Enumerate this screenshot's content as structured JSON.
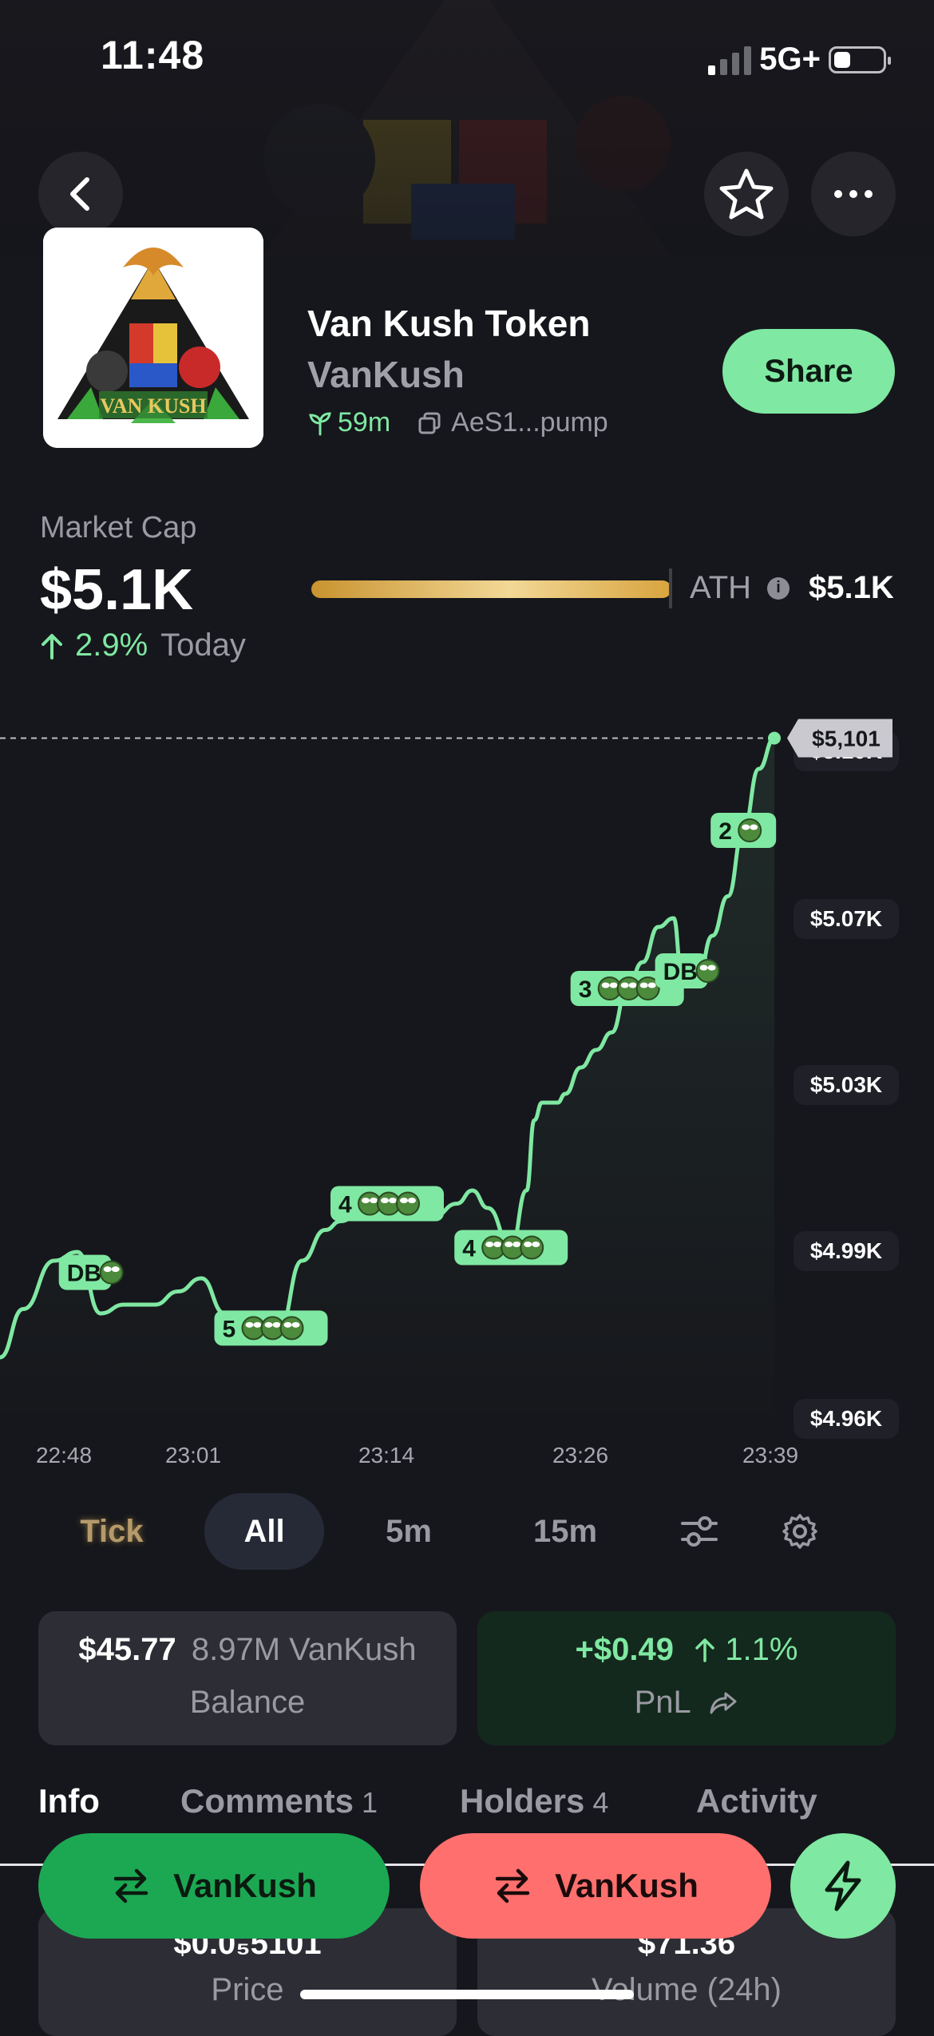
{
  "status_bar": {
    "time": "11:48",
    "network": "5G+",
    "battery_level": 0.35
  },
  "token": {
    "name": "Van Kush Token",
    "ticker": "VanKush",
    "logo_text": "VAN KUSH",
    "age": "59m",
    "address": "AeS1...pump"
  },
  "header": {
    "share_label": "Share"
  },
  "market_cap": {
    "label": "Market Cap",
    "value": "$5.1K",
    "change": "2.9%",
    "change_suffix": "Today",
    "ath_label": "ATH",
    "ath_value": "$5.1K",
    "ath_progress": 0.99
  },
  "chart_data": {
    "type": "line",
    "x_ticks": [
      "22:48",
      "23:01",
      "23:14",
      "23:26",
      "23:39"
    ],
    "y_ticks": [
      "$5.10K",
      "$5.07K",
      "$5.03K",
      "$4.99K",
      "$4.96K"
    ],
    "ylim": [
      4960,
      5100
    ],
    "current_label": "$5,101",
    "current_value": 5101,
    "x": [
      0,
      0.03,
      0.07,
      0.1,
      0.13,
      0.16,
      0.2,
      0.23,
      0.26,
      0.29,
      0.31,
      0.33,
      0.36,
      0.39,
      0.42,
      0.44,
      0.47,
      0.5,
      0.53,
      0.56,
      0.59,
      0.61,
      0.63,
      0.66,
      0.68,
      0.69,
      0.7,
      0.72,
      0.73,
      0.75,
      0.77,
      0.79,
      0.81,
      0.83,
      0.85,
      0.87,
      0.88,
      0.9,
      0.92,
      0.94,
      0.96,
      0.98,
      1.0
    ],
    "values": [
      4960,
      4971,
      4982,
      4984,
      4970,
      4972,
      4972,
      4975,
      4978,
      4970,
      4965,
      4968,
      4966,
      4982,
      4989,
      4991,
      4994,
      4995,
      4995,
      4992,
      4995,
      4998,
      4994,
      4985,
      4998,
      5014,
      5018,
      5018,
      5020,
      5026,
      5030,
      5034,
      5044,
      5050,
      5058,
      5060,
      5048,
      5045,
      5056,
      5065,
      5080,
      5094,
      5101
    ],
    "markers": [
      {
        "label": "DB",
        "count": 0,
        "at": 0.11
      },
      {
        "label": "5",
        "count": 3,
        "at": 0.35
      },
      {
        "label": "4",
        "count": 3,
        "at": 0.5
      },
      {
        "label": "4",
        "count": 3,
        "at": 0.66
      },
      {
        "label": "3",
        "count": 3,
        "at": 0.81
      },
      {
        "label": "DB",
        "count": 0,
        "at": 0.88
      },
      {
        "label": "2",
        "count": 1,
        "at": 0.96
      }
    ]
  },
  "timeframes": [
    {
      "label": "Tick",
      "state": "tick"
    },
    {
      "label": "All",
      "state": "active"
    },
    {
      "label": "5m",
      "state": ""
    },
    {
      "label": "15m",
      "state": ""
    }
  ],
  "balance": {
    "amount": "$45.77",
    "tokens": "8.97M VanKush",
    "label": "Balance"
  },
  "pnl": {
    "amount": "+$0.49",
    "pct": "1.1%",
    "label": "PnL"
  },
  "info_tabs": [
    {
      "label": "Info",
      "count": ""
    },
    {
      "label": "Comments",
      "count": "1"
    },
    {
      "label": "Holders",
      "count": "4"
    },
    {
      "label": "Activity",
      "count": ""
    }
  ],
  "stats": [
    {
      "value": "$0.0₅5101",
      "label": "Price"
    },
    {
      "value": "$71.36",
      "label": "Volume (24h)"
    }
  ],
  "actions": {
    "buy_label": "VanKush",
    "sell_label": "VanKush"
  },
  "colors": {
    "accent_green": "#7fe8a2",
    "buy_green": "#1ca853",
    "sell_red": "#ff6f6e",
    "bg": "#16171c",
    "gold": "#e2b45a"
  }
}
